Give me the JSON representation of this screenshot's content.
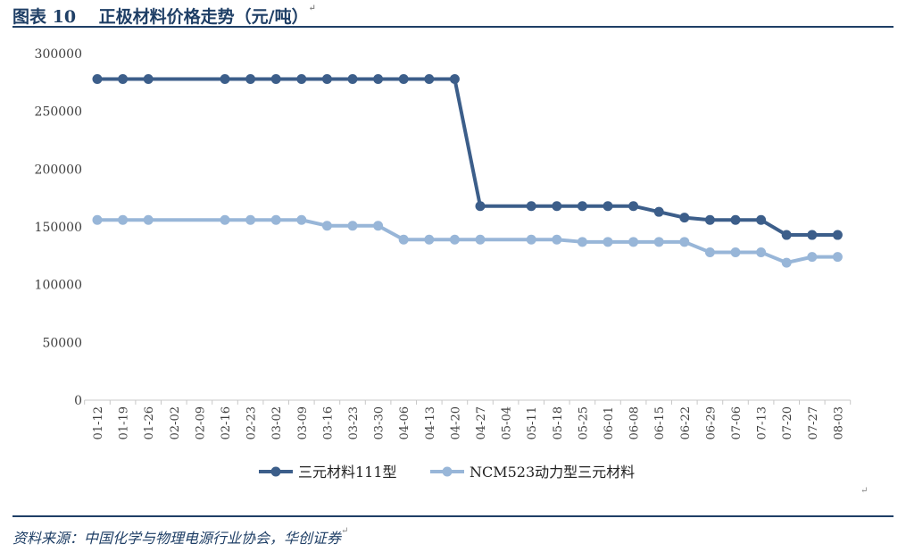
{
  "figure": {
    "title": "图表 10　 正极材料价格走势（元/吨）",
    "para_mark": "↵",
    "source": "资料来源：中国化学与物理电源行业协会，华创证券"
  },
  "colors": {
    "rule": "#1f3f66",
    "series1": "#3c5e8a",
    "series2": "#98b6d8",
    "axis": "#c8c8c8",
    "text": "#404040"
  },
  "chart_data": {
    "type": "line",
    "x": [
      "01-12",
      "01-19",
      "01-26",
      "02-02",
      "02-09",
      "02-16",
      "02-23",
      "03-02",
      "03-09",
      "03-16",
      "03-23",
      "03-30",
      "04-06",
      "04-13",
      "04-20",
      "04-27",
      "05-04",
      "05-11",
      "05-18",
      "05-25",
      "06-01",
      "06-08",
      "06-15",
      "06-22",
      "06-29",
      "07-06",
      "07-13",
      "07-20",
      "07-27",
      "08-03"
    ],
    "ylim": [
      0,
      300000
    ],
    "yticks": [
      0,
      50000,
      100000,
      150000,
      200000,
      250000,
      300000
    ],
    "grid": false,
    "legend_position": "bottom",
    "series": [
      {
        "name": "三元材料111型",
        "values": [
          278000,
          278000,
          278000,
          null,
          null,
          278000,
          278000,
          278000,
          278000,
          278000,
          278000,
          278000,
          278000,
          278000,
          278000,
          168000,
          null,
          168000,
          168000,
          168000,
          168000,
          168000,
          163000,
          158000,
          156000,
          156000,
          156000,
          143000,
          143000,
          143000
        ]
      },
      {
        "name": "NCM523动力型三元材料",
        "values": [
          156000,
          156000,
          156000,
          null,
          null,
          156000,
          156000,
          156000,
          156000,
          151000,
          151000,
          151000,
          139000,
          139000,
          139000,
          139000,
          null,
          139000,
          139000,
          137000,
          137000,
          137000,
          137000,
          137000,
          128000,
          128000,
          128000,
          119000,
          124000,
          124000
        ]
      }
    ]
  }
}
